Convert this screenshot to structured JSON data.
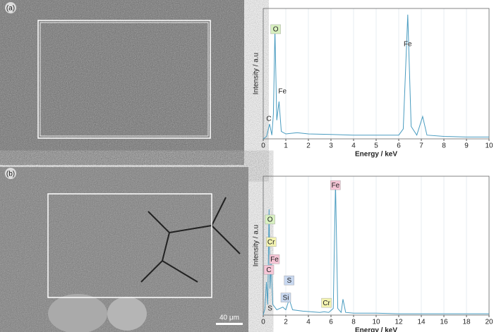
{
  "images": [
    {
      "label": "(a)"
    },
    {
      "label": "(b)",
      "scale_bar": "40 μm"
    }
  ],
  "chart_data": [
    {
      "type": "line",
      "xlabel": "Energy / keV",
      "ylabel": "Intensity / a.u",
      "color": "#4a9cc0",
      "grid": true,
      "x": [
        0,
        0.15,
        0.28,
        0.38,
        0.45,
        0.52,
        0.6,
        0.7,
        0.8,
        1,
        1.5,
        2,
        3,
        4,
        5,
        6,
        6.2,
        6.4,
        6.55,
        6.8,
        7.06,
        7.25,
        8,
        9,
        10
      ],
      "values": [
        0,
        2,
        12,
        3,
        20,
        88,
        15,
        30,
        6,
        4,
        5,
        4,
        3.5,
        3,
        3,
        3,
        8,
        100,
        10,
        3,
        18,
        3,
        2,
        1.5,
        1.5
      ],
      "xlim": [
        0,
        10
      ],
      "xticks": [
        0,
        1,
        2,
        3,
        4,
        5,
        6,
        7,
        8,
        9,
        10
      ],
      "ylim": [
        0,
        105
      ],
      "annotations": [
        {
          "text": "O",
          "x": 0.55,
          "y": 88,
          "color": "#d8f0c0"
        },
        {
          "text": "Fe",
          "x": 6.4,
          "y": 76
        },
        {
          "text": "Fe",
          "x": 0.85,
          "y": 38
        },
        {
          "text": "C",
          "x": 0.25,
          "y": 16
        }
      ]
    },
    {
      "type": "line",
      "xlabel": "Energy / keV",
      "ylabel": "Intensity / a.u",
      "color": "#4a9cc0",
      "grid": true,
      "x": [
        0,
        0.15,
        0.28,
        0.4,
        0.52,
        0.6,
        0.7,
        0.85,
        1.2,
        1.74,
        2,
        2.3,
        2.6,
        3.5,
        5,
        5.4,
        5.8,
        6.2,
        6.4,
        6.6,
        6.9,
        7.06,
        7.3,
        8,
        10,
        12,
        14,
        16,
        18,
        20
      ],
      "values": [
        0,
        5,
        25,
        8,
        80,
        20,
        40,
        8,
        4,
        6,
        4,
        12,
        4,
        3,
        2,
        2.5,
        2,
        5,
        100,
        5,
        2,
        12,
        2,
        1.5,
        1.5,
        1,
        1,
        1,
        1,
        1
      ],
      "xlim": [
        0,
        20
      ],
      "xticks": [
        0,
        2,
        4,
        6,
        8,
        10,
        12,
        14,
        16,
        18,
        20
      ],
      "ylim": [
        0,
        105
      ],
      "annotations": [
        {
          "text": "Fe",
          "x": 6.4,
          "y": 98,
          "color": "#f5c6d6"
        },
        {
          "text": "O",
          "x": 0.6,
          "y": 72,
          "color": "#d8f0c0"
        },
        {
          "text": "Cr",
          "x": 0.7,
          "y": 55,
          "color": "#f3f3b0"
        },
        {
          "text": "Fe",
          "x": 1.0,
          "y": 42,
          "color": "#f5c6d6"
        },
        {
          "text": "C",
          "x": 0.5,
          "y": 34,
          "color": "#f5c6d6"
        },
        {
          "text": "S",
          "x": 2.3,
          "y": 26,
          "color": "#c8d8f0"
        },
        {
          "text": "Si",
          "x": 2.0,
          "y": 13,
          "color": "#c8d8f0"
        },
        {
          "text": "S",
          "x": 0.6,
          "y": 5
        },
        {
          "text": "Cr",
          "x": 5.6,
          "y": 9,
          "color": "#f3f3b0"
        }
      ]
    }
  ]
}
